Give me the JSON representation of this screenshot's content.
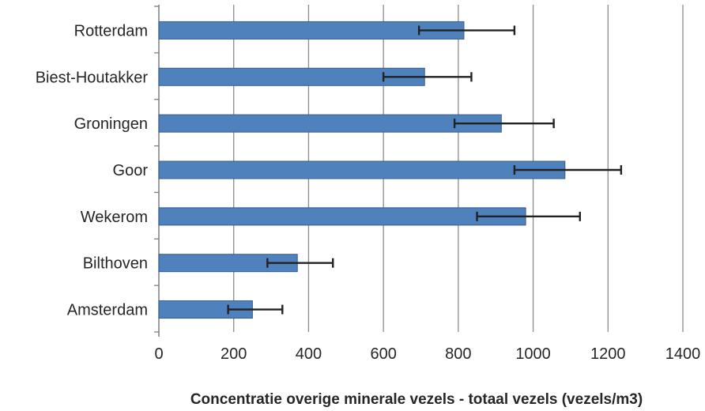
{
  "chart_data": {
    "type": "bar",
    "orientation": "horizontal",
    "title": "",
    "xlabel": "Concentratie overige minerale vezels - totaal vezels (vezels/m3)",
    "ylabel": "",
    "xlim": [
      0,
      1400
    ],
    "x_ticks": [
      0,
      200,
      400,
      600,
      800,
      1000,
      1200,
      1400
    ],
    "x_tick_labels": [
      "0",
      "200",
      "400",
      "600",
      "800",
      "1000",
      "1200",
      "1400"
    ],
    "grid": "vertical",
    "legend": "none",
    "categories": [
      "Rotterdam",
      "Biest-Houtakker",
      "Groningen",
      "Goor",
      "Wekerom",
      "Bilthoven",
      "Amsterdam"
    ],
    "values": [
      815,
      710,
      915,
      1085,
      980,
      370,
      250
    ],
    "error_low": [
      695,
      600,
      790,
      950,
      850,
      290,
      185
    ],
    "error_high": [
      950,
      835,
      1055,
      1235,
      1125,
      465,
      330
    ],
    "bar_color": "#4f81bd",
    "bar_edge_color": "#385d8a",
    "error_color": "#222222",
    "grid_color": "#8c8c8c"
  }
}
